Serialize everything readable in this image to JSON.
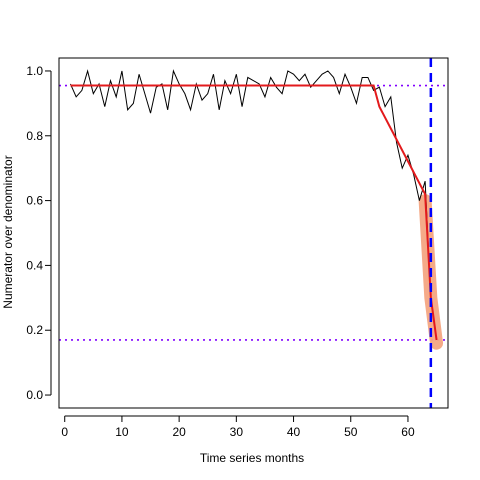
{
  "chart_data": {
    "type": "line",
    "title": "",
    "xlabel": "Time series months",
    "ylabel": "Numerator over denominator",
    "xlim": [
      -1,
      67
    ],
    "ylim": [
      -0.04,
      1.04
    ],
    "x_ticks": [
      0,
      10,
      20,
      30,
      40,
      50,
      60
    ],
    "y_ticks": [
      0.0,
      0.2,
      0.4,
      0.6,
      0.8,
      1.0
    ],
    "y_tick_labels": [
      "0.0",
      "0.2",
      "0.4",
      "0.6",
      "0.8",
      "1.0"
    ],
    "grid": false,
    "series": [
      {
        "role": "observed",
        "color": "#000000",
        "x": [
          1,
          2,
          3,
          4,
          5,
          6,
          7,
          8,
          9,
          10,
          11,
          12,
          13,
          14,
          15,
          16,
          17,
          18,
          19,
          20,
          21,
          22,
          23,
          24,
          25,
          26,
          27,
          28,
          29,
          30,
          31,
          32,
          33,
          34,
          35,
          36,
          37,
          38,
          39,
          40,
          41,
          42,
          43,
          44,
          45,
          46,
          47,
          48,
          49,
          50,
          51,
          52,
          53,
          54,
          55,
          56,
          57,
          58,
          59,
          60,
          61,
          62,
          63,
          64,
          65
        ],
        "y": [
          0.96,
          0.92,
          0.94,
          1.0,
          0.93,
          0.96,
          0.89,
          0.97,
          0.92,
          1.0,
          0.88,
          0.9,
          0.99,
          0.93,
          0.87,
          0.95,
          0.96,
          0.88,
          1.0,
          0.96,
          0.93,
          0.88,
          0.96,
          0.91,
          0.93,
          0.99,
          0.88,
          0.97,
          0.93,
          0.99,
          0.89,
          0.98,
          0.97,
          0.96,
          0.92,
          0.98,
          0.95,
          0.93,
          1.0,
          0.99,
          0.97,
          0.99,
          0.95,
          0.97,
          0.99,
          1.0,
          0.98,
          0.93,
          0.99,
          0.95,
          0.9,
          0.98,
          0.98,
          0.94,
          0.95,
          0.89,
          0.92,
          0.78,
          0.7,
          0.74,
          0.68,
          0.6,
          0.66,
          0.3,
          0.17
        ]
      },
      {
        "role": "fitted-segments",
        "color": "#e31a1c",
        "x": [
          1,
          54,
          55,
          63,
          64,
          65
        ],
        "y": [
          0.955,
          0.955,
          0.89,
          0.62,
          0.3,
          0.17
        ]
      },
      {
        "role": "highlighted-drop",
        "color": "#f4a582",
        "x": [
          63,
          64,
          65
        ],
        "y": [
          0.6,
          0.3,
          0.16
        ]
      }
    ],
    "hlines": [
      {
        "y": 0.955,
        "color": "#8000ff",
        "style": "dotted"
      },
      {
        "y": 0.17,
        "color": "#8000ff",
        "style": "dotted"
      }
    ],
    "vlines": [
      {
        "x": 64,
        "color": "#0000ff",
        "style": "dashed"
      }
    ]
  }
}
